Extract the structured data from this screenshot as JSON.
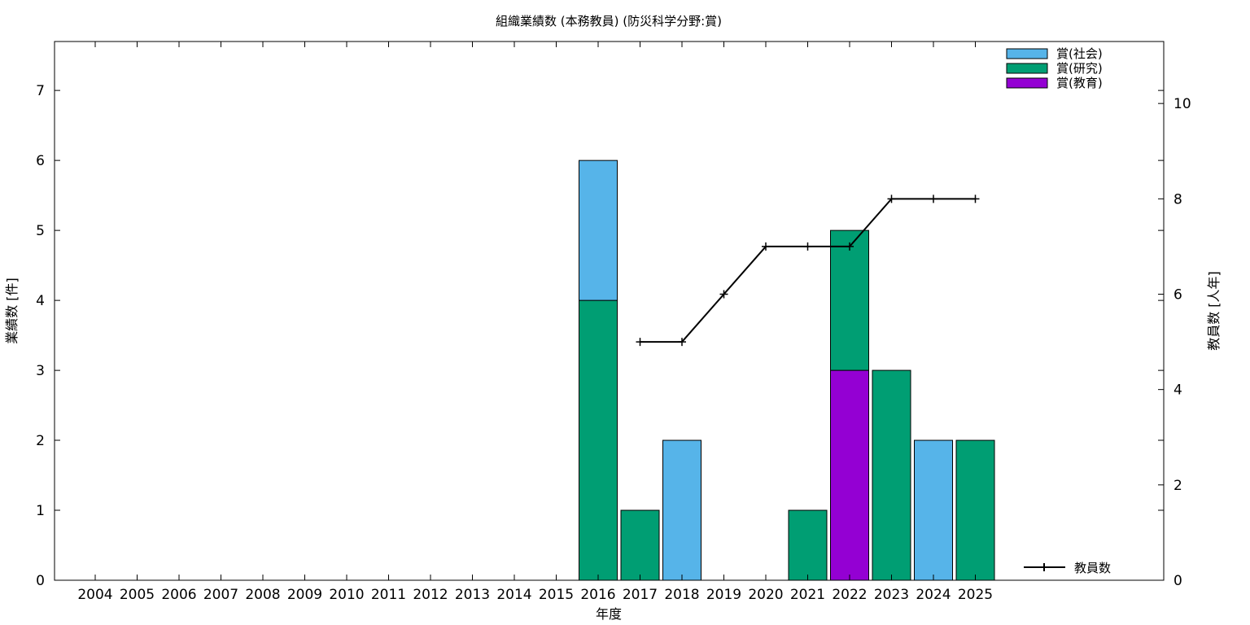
{
  "chart_data": {
    "type": "bar",
    "title": "組織業績数 (本務教員) (防災科学分野:賞)",
    "xlabel": "年度",
    "ylabel": "業績数 [件]",
    "y2label": "教員数 [人年]",
    "ylim": [
      0,
      7.7
    ],
    "y2lim": [
      0,
      11.3
    ],
    "yticks": [
      0,
      1,
      2,
      3,
      4,
      5,
      6,
      7
    ],
    "y2ticks": [
      0,
      2,
      4,
      6,
      8,
      10
    ],
    "grid": false,
    "stacked": true,
    "categories": [
      "2004",
      "2005",
      "2006",
      "2007",
      "2008",
      "2009",
      "2010",
      "2011",
      "2012",
      "2013",
      "2014",
      "2015",
      "2016",
      "2017",
      "2018",
      "2019",
      "2020",
      "2021",
      "2022",
      "2023",
      "2024",
      "2025"
    ],
    "series": [
      {
        "name": "賞(教育)",
        "color": "#9400d3",
        "values": [
          0,
          0,
          0,
          0,
          0,
          0,
          0,
          0,
          0,
          0,
          0,
          0,
          0,
          0,
          0,
          0,
          0,
          0,
          3,
          0,
          0,
          0
        ]
      },
      {
        "name": "賞(研究)",
        "color": "#009e73",
        "values": [
          0,
          0,
          0,
          0,
          0,
          0,
          0,
          0,
          0,
          0,
          0,
          0,
          4,
          1,
          0,
          0,
          0,
          1,
          2,
          3,
          0,
          2
        ]
      },
      {
        "name": "賞(社会)",
        "color": "#56b4e9",
        "values": [
          0,
          0,
          0,
          0,
          0,
          0,
          0,
          0,
          0,
          0,
          0,
          0,
          2,
          0,
          2,
          0,
          0,
          0,
          0,
          0,
          2,
          0
        ]
      }
    ],
    "legend": {
      "position": "top-right",
      "order": [
        "賞(社会)",
        "賞(研究)",
        "賞(教育)"
      ]
    },
    "line_series": {
      "name": "教員数",
      "axis": "right",
      "color": "#000000",
      "legend_position": "bottom-right",
      "x": [
        "2017",
        "2018",
        "2019",
        "2020",
        "2021",
        "2022",
        "2023",
        "2024",
        "2025"
      ],
      "values": [
        5,
        5,
        6,
        7,
        7,
        7,
        8,
        8,
        8
      ]
    }
  }
}
